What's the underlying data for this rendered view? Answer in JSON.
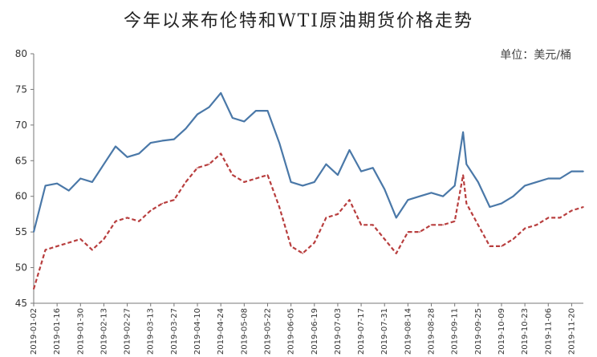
{
  "chart_data": {
    "type": "line",
    "title": "今年以来布伦特和WTI原油期货价格走势",
    "unit_label": "单位：美元/桶",
    "ylim": [
      45,
      80
    ],
    "yticks": [
      45,
      50,
      55,
      60,
      65,
      70,
      75,
      80
    ],
    "x_tick_labels": [
      "2019-01-02",
      "2019-01-16",
      "2019-01-30",
      "2019-02-13",
      "2019-02-27",
      "2019-03-13",
      "2019-03-27",
      "2019-04-10",
      "2019-04-24",
      "2019-05-08",
      "2019-05-22",
      "2019-06-05",
      "2019-06-19",
      "2019-07-03",
      "2019-07-17",
      "2019-07-31",
      "2019-08-14",
      "2019-08-28",
      "2019-09-11",
      "2019-09-25",
      "2019-10-09",
      "2019-10-23",
      "2019-11-06",
      "2019-11-20"
    ],
    "grid": false,
    "x": [
      "2019-01-02",
      "2019-01-09",
      "2019-01-16",
      "2019-01-23",
      "2019-01-30",
      "2019-02-06",
      "2019-02-13",
      "2019-02-20",
      "2019-02-27",
      "2019-03-06",
      "2019-03-13",
      "2019-03-20",
      "2019-03-27",
      "2019-04-03",
      "2019-04-10",
      "2019-04-17",
      "2019-04-24",
      "2019-05-01",
      "2019-05-08",
      "2019-05-15",
      "2019-05-22",
      "2019-05-29",
      "2019-06-05",
      "2019-06-12",
      "2019-06-19",
      "2019-06-26",
      "2019-07-03",
      "2019-07-10",
      "2019-07-17",
      "2019-07-24",
      "2019-07-31",
      "2019-08-07",
      "2019-08-14",
      "2019-08-21",
      "2019-08-28",
      "2019-09-04",
      "2019-09-11",
      "2019-09-16",
      "2019-09-18",
      "2019-09-25",
      "2019-10-02",
      "2019-10-09",
      "2019-10-16",
      "2019-10-23",
      "2019-10-30",
      "2019-11-06",
      "2019-11-13",
      "2019-11-20",
      "2019-11-27"
    ],
    "series": [
      {
        "color": "#4a78a8",
        "style": "solid",
        "values": [
          55.0,
          61.5,
          61.8,
          60.8,
          62.5,
          62.0,
          64.5,
          67.0,
          65.5,
          66.0,
          67.5,
          67.8,
          68.0,
          69.5,
          71.5,
          72.5,
          74.5,
          71.0,
          70.5,
          72.0,
          72.0,
          67.5,
          62.0,
          61.5,
          62.0,
          64.5,
          63.0,
          66.5,
          63.5,
          64.0,
          61.0,
          57.0,
          59.5,
          60.0,
          60.5,
          60.0,
          61.5,
          69.0,
          64.5,
          62.0,
          58.5,
          59.0,
          60.0,
          61.5,
          62.0,
          62.5,
          62.5,
          63.5,
          63.5
        ]
      },
      {
        "color": "#b83e3e",
        "style": "dashed",
        "values": [
          47.0,
          52.5,
          53.0,
          53.5,
          54.0,
          52.5,
          54.0,
          56.5,
          57.0,
          56.5,
          58.0,
          59.0,
          59.5,
          62.0,
          64.0,
          64.5,
          66.0,
          63.0,
          62.0,
          62.5,
          63.0,
          58.5,
          53.0,
          52.0,
          53.5,
          57.0,
          57.5,
          59.5,
          56.0,
          56.0,
          54.0,
          52.0,
          55.0,
          55.0,
          56.0,
          56.0,
          56.5,
          63.0,
          59.0,
          56.0,
          53.0,
          53.0,
          54.0,
          55.5,
          56.0,
          57.0,
          57.0,
          58.0,
          58.5
        ]
      }
    ]
  }
}
